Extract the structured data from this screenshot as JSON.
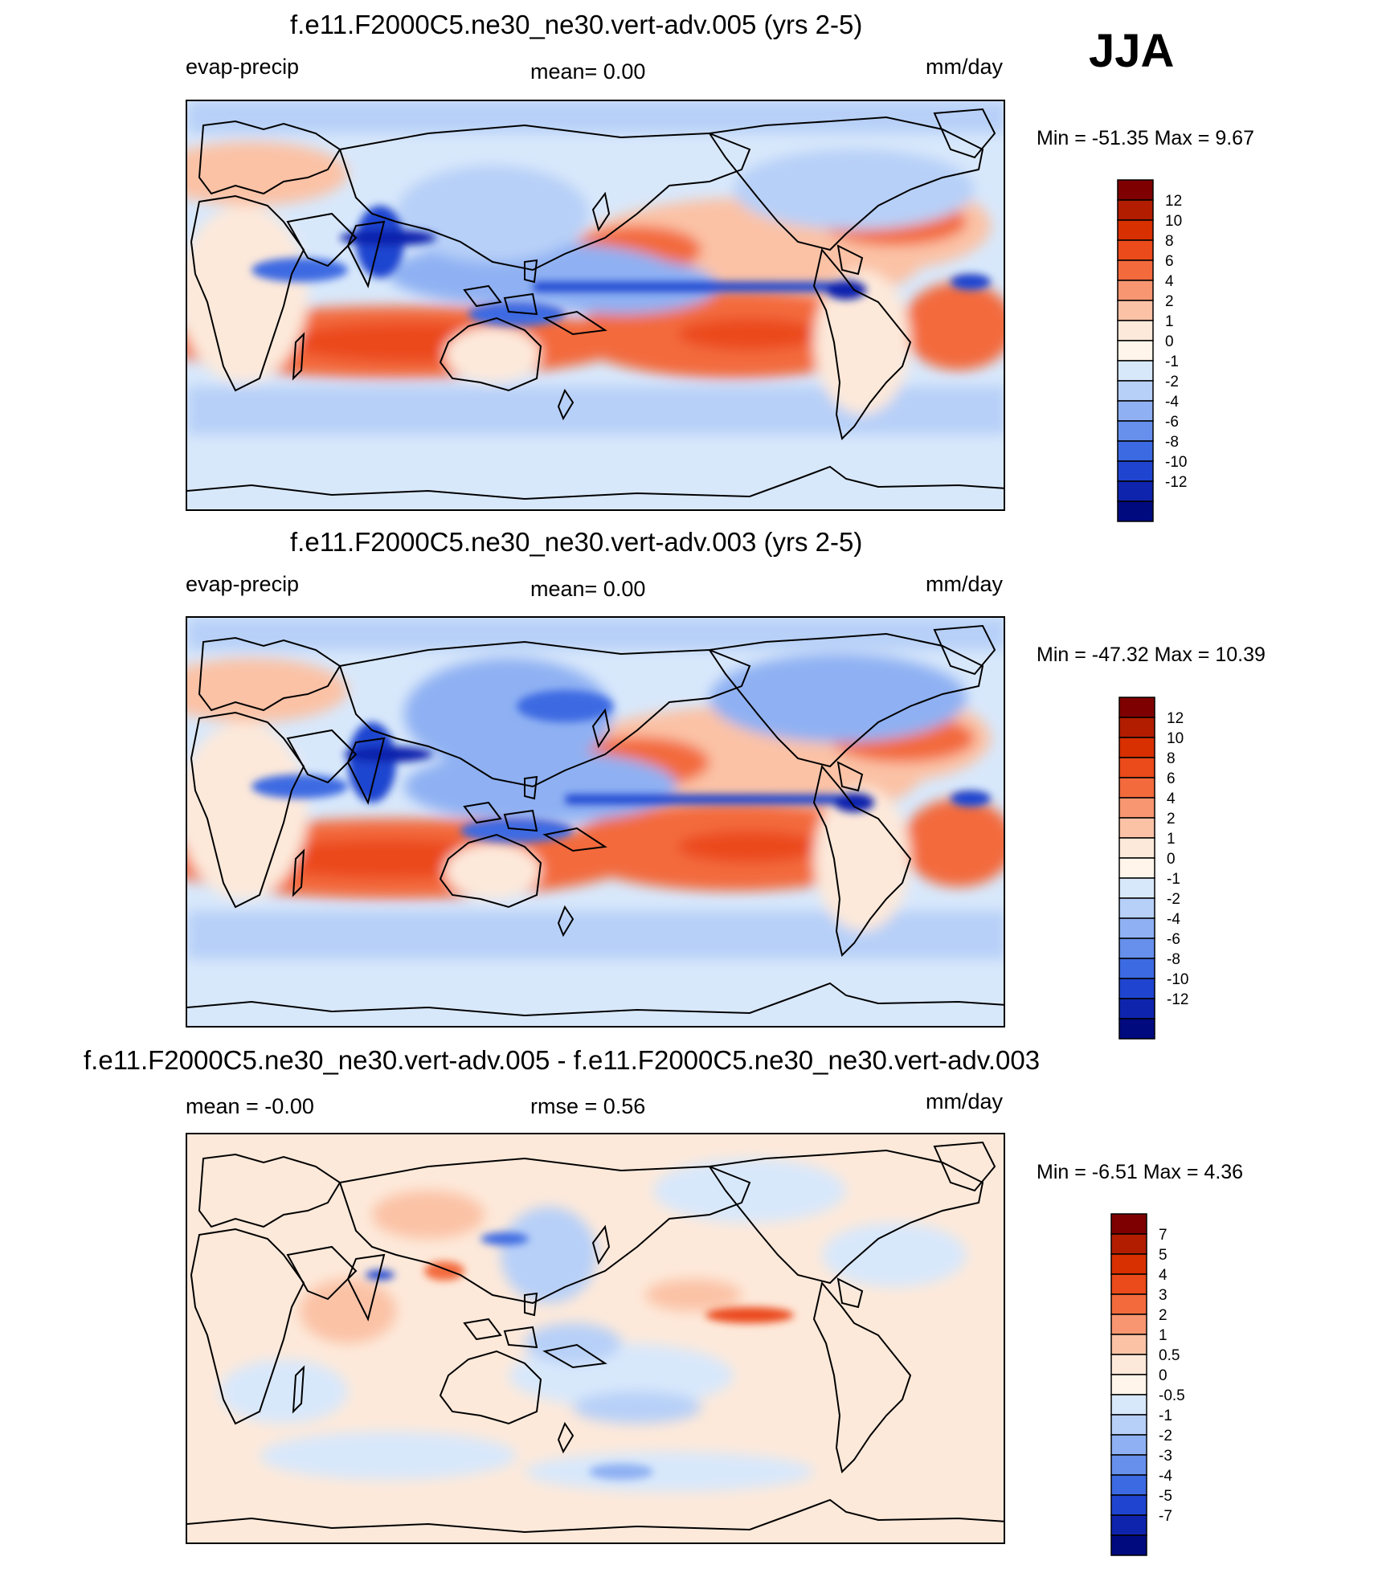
{
  "season": "JJA",
  "panels": [
    {
      "title": "f.e11.F2000C5.ne30_ne30.vert-adv.005 (yrs 2-5)",
      "left_label": "evap-precip",
      "center_label": "mean=   0.00",
      "units": "mm/day",
      "minmax": "Min = -51.35 Max =   9.67",
      "map_type": "absolute"
    },
    {
      "title": "f.e11.F2000C5.ne30_ne30.vert-adv.003 (yrs 2-5)",
      "left_label": "evap-precip",
      "center_label": "mean=   0.00",
      "units": "mm/day",
      "minmax": "Min = -47.32 Max = 10.39",
      "map_type": "absolute"
    },
    {
      "title": "f.e11.F2000C5.ne30_ne30.vert-adv.005 - f.e11.F2000C5.ne30_ne30.vert-adv.003",
      "left_label": "mean =  -0.00",
      "center_label": "rmse =   0.56",
      "units": "mm/day",
      "minmax": "Min =  -6.51 Max =   4.36",
      "map_type": "difference"
    }
  ],
  "colorbars": {
    "absolute": {
      "labels": [
        "12",
        "10",
        "8",
        "6",
        "4",
        "2",
        "1",
        "0",
        "-1",
        "-2",
        "-4",
        "-6",
        "-8",
        "-10",
        "-12"
      ],
      "colors": [
        "#7f0000",
        "#b21d00",
        "#d83000",
        "#eb4a1a",
        "#f36a3c",
        "#f79670",
        "#fbc2a6",
        "#fde9da",
        "#fff5ea",
        "#d8e8fb",
        "#b7d0f8",
        "#8fb1f3",
        "#6690ec",
        "#3c6ae2",
        "#1f45d0",
        "#0f24ad",
        "#000a7f"
      ]
    },
    "difference": {
      "labels": [
        "7",
        "5",
        "4",
        "3",
        "2",
        "1",
        "0.5",
        "0",
        "-0.5",
        "-1",
        "-2",
        "-3",
        "-4",
        "-5",
        "-7"
      ],
      "colors": [
        "#7f0000",
        "#b21d00",
        "#d83000",
        "#eb4a1a",
        "#f36a3c",
        "#f79670",
        "#fbc2a6",
        "#fde9da",
        "#fff5ea",
        "#d8e8fb",
        "#b7d0f8",
        "#8fb1f3",
        "#6690ec",
        "#3c6ae2",
        "#1f45d0",
        "#0f24ad",
        "#000a7f"
      ]
    }
  }
}
